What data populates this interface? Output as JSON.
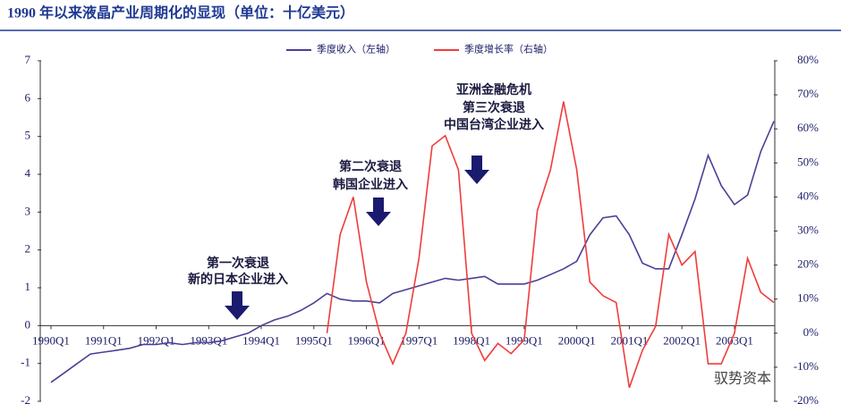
{
  "chart_data": {
    "type": "line",
    "title": "1990 年以来液晶产业周期化的显现（单位：十亿美元）",
    "categories": [
      "1990Q1",
      null,
      null,
      null,
      "1991Q1",
      null,
      null,
      null,
      "1992Q1",
      null,
      null,
      null,
      "1993Q1",
      null,
      null,
      null,
      "1994Q1",
      null,
      null,
      null,
      "1995Q1",
      null,
      null,
      null,
      "1996Q1",
      null,
      null,
      null,
      "1997Q1",
      null,
      null,
      null,
      "1998Q1",
      null,
      null,
      null,
      "1999Q1",
      null,
      null,
      null,
      "2000Q1",
      null,
      null,
      null,
      "2001Q1",
      null,
      null,
      null,
      "2002Q1",
      null,
      null,
      null,
      "2003Q1",
      null,
      null,
      null
    ],
    "series": [
      {
        "name": "季度收入（左轴）",
        "color": "#4b3f96",
        "values": [
          -1.5,
          -1.25,
          -1.0,
          -0.75,
          -0.7,
          -0.65,
          -0.6,
          -0.5,
          -0.5,
          -0.45,
          -0.5,
          -0.45,
          -0.45,
          -0.4,
          -0.3,
          -0.2,
          0.0,
          0.15,
          0.25,
          0.4,
          0.6,
          0.85,
          0.7,
          0.65,
          0.65,
          0.6,
          0.85,
          0.95,
          1.05,
          1.15,
          1.25,
          1.2,
          1.25,
          1.3,
          1.1,
          1.1,
          1.1,
          1.2,
          1.35,
          1.5,
          1.7,
          2.4,
          2.85,
          2.9,
          2.4,
          1.65,
          1.5,
          1.5,
          2.4,
          3.35,
          4.5,
          3.7,
          3.2,
          3.45,
          4.6,
          5.4
        ]
      },
      {
        "name": "季度增长率（右轴）",
        "color": "#f03c3c",
        "axis": "y2",
        "values": [
          null,
          null,
          null,
          null,
          null,
          null,
          null,
          null,
          null,
          null,
          null,
          null,
          null,
          null,
          null,
          null,
          null,
          null,
          null,
          null,
          null,
          0,
          29,
          40,
          15,
          0,
          -9,
          0,
          22,
          55,
          58,
          48,
          0,
          -8,
          -3,
          -6,
          -2,
          36,
          48,
          68,
          48,
          15,
          11,
          9,
          -16,
          -5,
          2,
          29,
          20,
          24,
          -9,
          -9,
          0,
          22,
          12,
          9
        ]
      }
    ],
    "ylim": [
      -2,
      7
    ],
    "yticks": [
      -2,
      -1,
      0,
      1,
      2,
      3,
      4,
      5,
      6,
      7
    ],
    "y2lim": [
      -20,
      80
    ],
    "y2ticks": [
      {
        "value": -20,
        "label": "-20%"
      },
      {
        "value": -10,
        "label": "-10%"
      },
      {
        "value": 0,
        "label": "0%"
      },
      {
        "value": 10,
        "label": "10%"
      },
      {
        "value": 20,
        "label": "20%"
      },
      {
        "value": 30,
        "label": "30%"
      },
      {
        "value": 40,
        "label": "40%"
      },
      {
        "value": 50,
        "label": "50%"
      },
      {
        "value": 60,
        "label": "60%"
      },
      {
        "value": 70,
        "label": "70%"
      },
      {
        "value": 80,
        "label": "80%"
      }
    ],
    "annotations": [
      "第一次衰退",
      "新的日本企业进入",
      "第二次衰退",
      "韩国企业进入",
      "亚洲金融危机",
      "第三次衰退",
      "中国台湾企业进入"
    ],
    "watermark": "驭势资本"
  }
}
